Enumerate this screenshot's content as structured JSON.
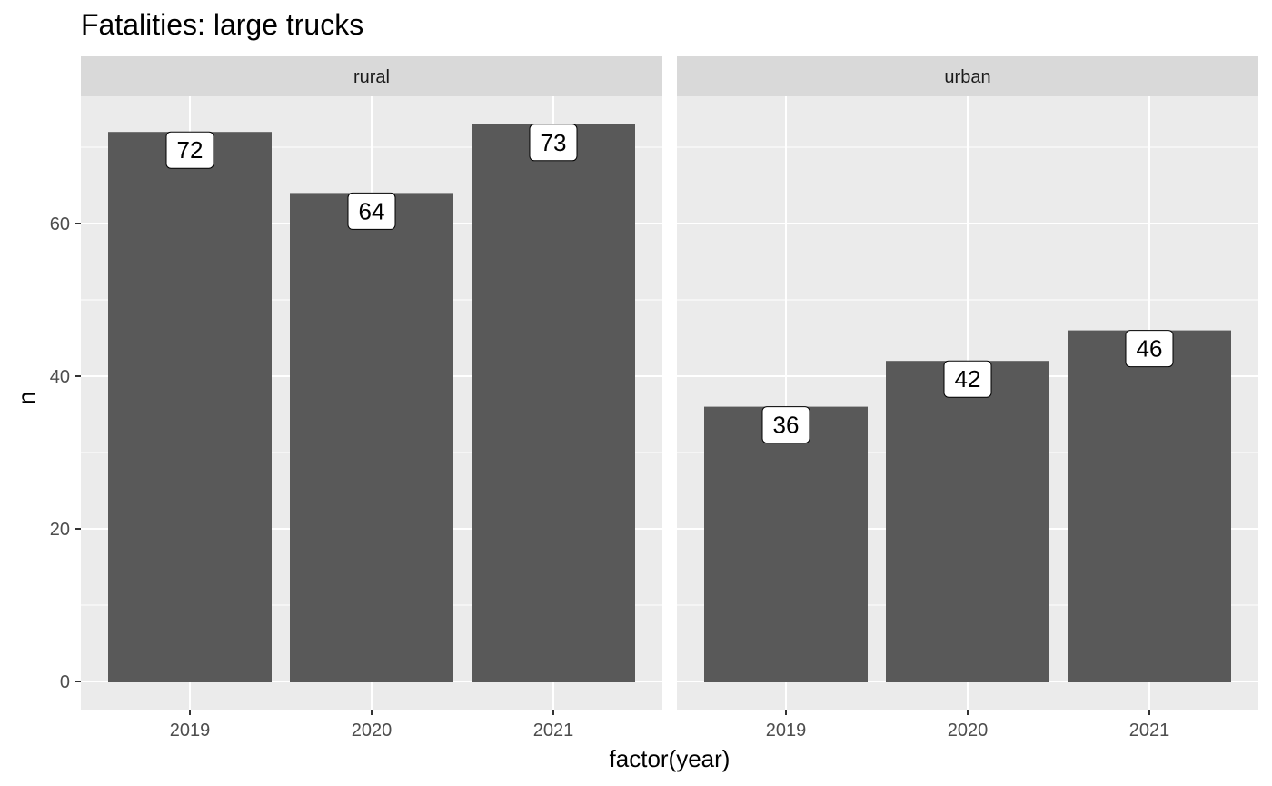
{
  "chart_data": {
    "type": "bar",
    "title": "Fatalities: large trucks",
    "xlabel": "factor(year)",
    "ylabel": "n",
    "ylim": [
      0,
      76
    ],
    "yticks": [
      0,
      20,
      40,
      60
    ],
    "categories": [
      "2019",
      "2020",
      "2021"
    ],
    "facets": [
      {
        "name": "rural",
        "values": [
          72,
          64,
          73
        ]
      },
      {
        "name": "urban",
        "values": [
          36,
          42,
          46
        ]
      }
    ],
    "grid": true,
    "legend": "none",
    "colors": {
      "bar": "#595959",
      "panel": "#ebebeb",
      "strip": "#d9d9d9",
      "grid": "#ffffff",
      "label_fill": "#ffffff"
    }
  }
}
